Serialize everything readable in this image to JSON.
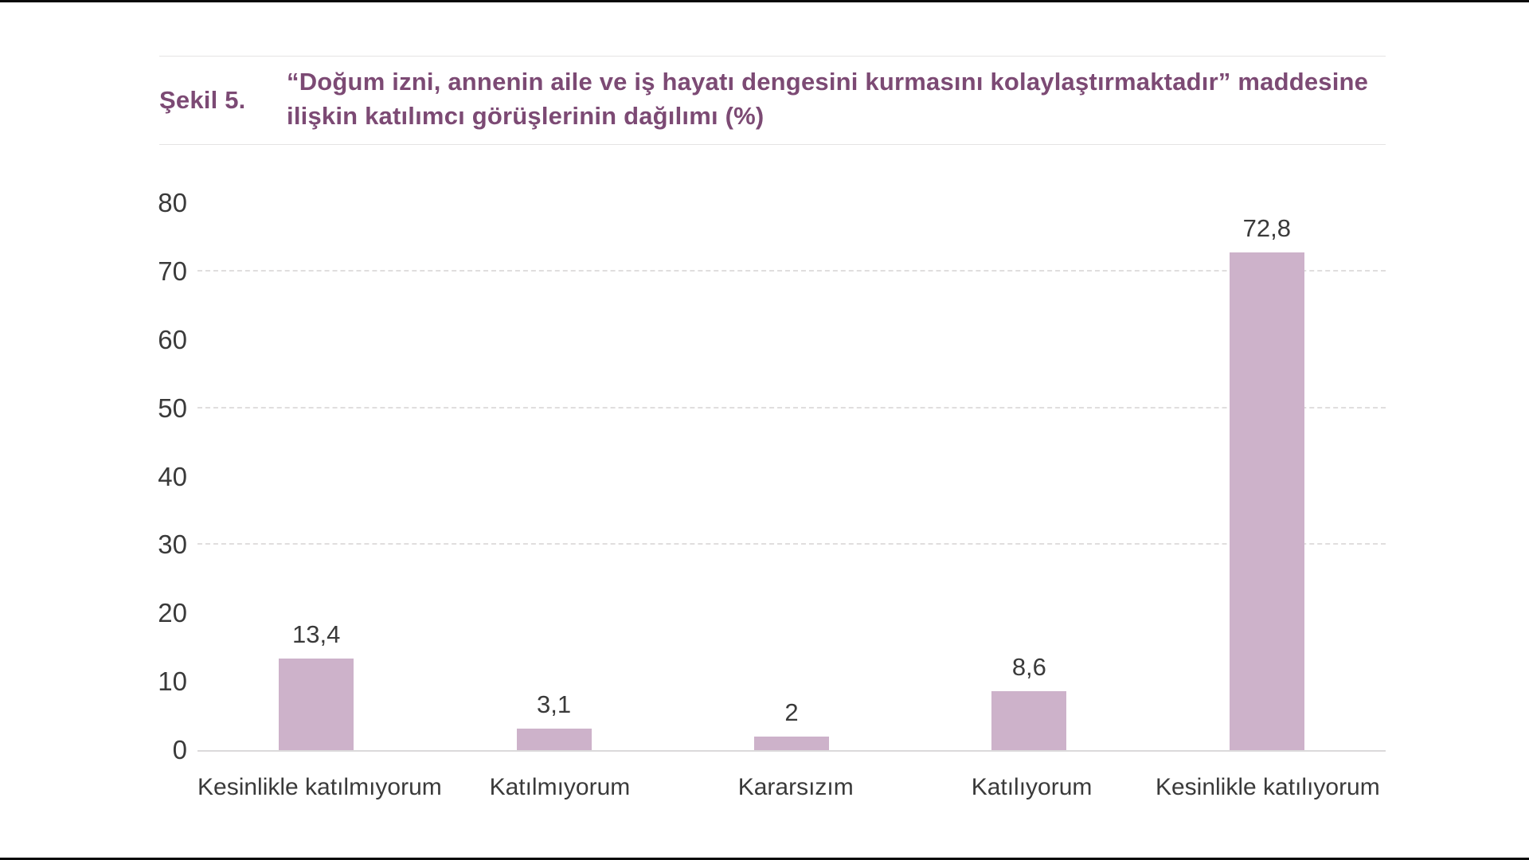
{
  "page": {
    "figure_label": "Şekil 5.",
    "title_line1": "“Doğum izni, annenin aile ve iş hayatı dengesini kurmasını kolaylaştırmaktadır” maddesine",
    "title_line2": "ilişkin katılımcı görüşlerinin dağılımı (%)"
  },
  "chart_data": {
    "type": "bar",
    "title": "“Doğum izni, annenin aile ve iş hayatı dengesini kurmasını kolaylaştırmaktadır” maddesine ilişkin katılımcı görüşlerinin dağılımı (%)",
    "categories": [
      "Kesinlikle katılmıyorum",
      "Katılmıyorum",
      "Kararsızım",
      "Katılıyorum",
      "Kesinlikle katılıyorum"
    ],
    "values": [
      13.4,
      3.1,
      2,
      8.6,
      72.8
    ],
    "value_labels": [
      "13,4",
      "3,1",
      "2",
      "8,6",
      "72,8"
    ],
    "xlabel": "",
    "ylabel": "",
    "ylim": [
      0,
      80
    ],
    "yticks": [
      0,
      10,
      20,
      30,
      40,
      50,
      60,
      70,
      80
    ],
    "gridlines_at": [
      30,
      50,
      70
    ],
    "grid_style": "dashed",
    "legend_position": "none",
    "bar_color": "#cdb2ca",
    "text_color": "#3a3a3a",
    "accent_color": "#7c4a74",
    "grid_color": "#e0dede"
  }
}
